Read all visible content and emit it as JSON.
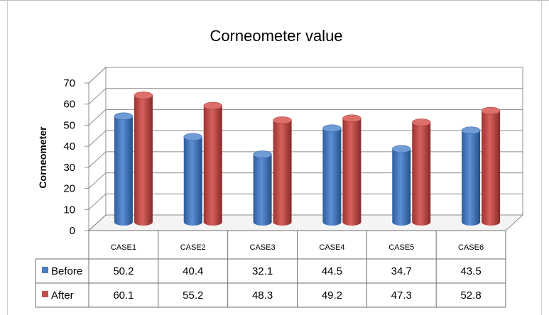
{
  "chart_data": {
    "type": "bar",
    "title": "Corneometer value",
    "ylabel": "Corneometer",
    "xlabel": "",
    "ylim": [
      0,
      70
    ],
    "yticks": [
      0,
      10,
      20,
      30,
      40,
      50,
      60,
      70
    ],
    "categories": [
      "CASE1",
      "CASE2",
      "CASE3",
      "CASE4",
      "CASE5",
      "CASE6"
    ],
    "series": [
      {
        "name": "Before",
        "values": [
          50.2,
          40.4,
          32.1,
          44.5,
          34.7,
          43.5
        ],
        "color": "#4a7cc0"
      },
      {
        "name": "After",
        "values": [
          60.1,
          55.2,
          48.3,
          49.2,
          47.3,
          52.8
        ],
        "color": "#c0504d"
      }
    ],
    "data_table": true,
    "grid": true,
    "style": "3d-cylinder"
  }
}
